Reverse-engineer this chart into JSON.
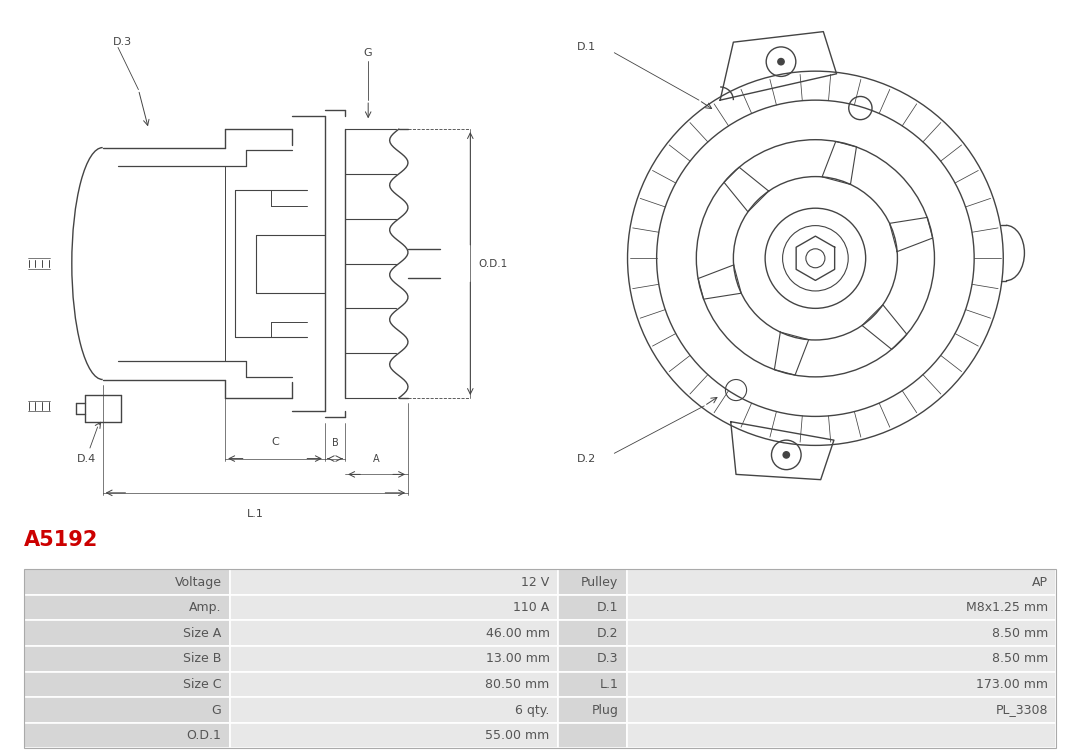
{
  "title": "A5192",
  "title_color": "#cc0000",
  "background_color": "#ffffff",
  "table_rows": [
    [
      "Voltage",
      "12 V",
      "Pulley",
      "AP"
    ],
    [
      "Amp.",
      "110 A",
      "D.1",
      "M8x1.25 mm"
    ],
    [
      "Size A",
      "46.00 mm",
      "D.2",
      "8.50 mm"
    ],
    [
      "Size B",
      "13.00 mm",
      "D.3",
      "8.50 mm"
    ],
    [
      "Size C",
      "80.50 mm",
      "L.1",
      "173.00 mm"
    ],
    [
      "G",
      "6 qty.",
      "Plug",
      "PL_3308"
    ],
    [
      "O.D.1",
      "55.00 mm",
      "",
      ""
    ]
  ],
  "text_color": "#555555",
  "line_color": "#444444",
  "dim_color": "#444444"
}
